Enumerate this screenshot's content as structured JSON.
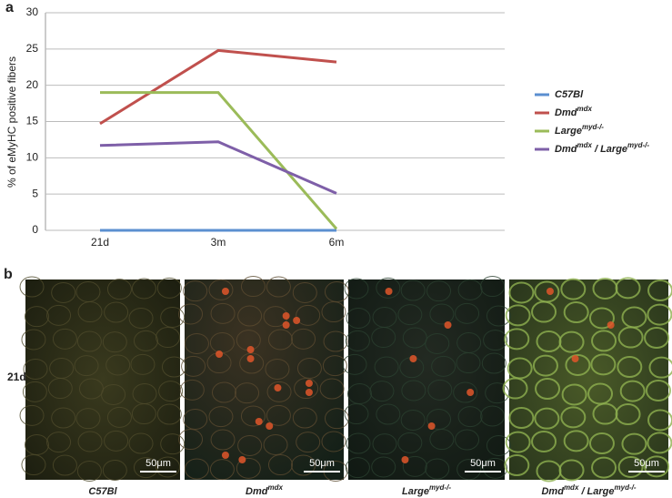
{
  "panel_labels": [
    "a",
    "b"
  ],
  "chart_data": {
    "type": "line",
    "y_label": "% of eMyHC positive fibers",
    "categories": [
      "21d",
      "3m",
      "6m"
    ],
    "ylim": [
      0,
      30
    ],
    "yticks": [
      0,
      5,
      10,
      15,
      20,
      25,
      30
    ],
    "grid": true,
    "legend": "right",
    "series": [
      {
        "name": [
          "C57Bl"
        ],
        "color": "#5b8fd0",
        "values": [
          0,
          0,
          0
        ]
      },
      {
        "name": [
          "Dmd",
          "mdx"
        ],
        "color": "#c0504d",
        "values": [
          14.7,
          24.8,
          23.2
        ]
      },
      {
        "name": [
          "Large",
          "myd-/-"
        ],
        "color": "#9bbb59",
        "values": [
          19,
          19,
          0.2
        ]
      },
      {
        "name": [
          "Dmd",
          "mdx",
          " / Large",
          "myd-/-"
        ],
        "color": "#7e5fa8",
        "values": [
          11.7,
          12.2,
          5.1
        ]
      }
    ]
  },
  "micrographs": {
    "row_label": "21d",
    "scale_bars": [
      "50μm",
      "50μm",
      "50μm",
      "50μm"
    ]
  }
}
